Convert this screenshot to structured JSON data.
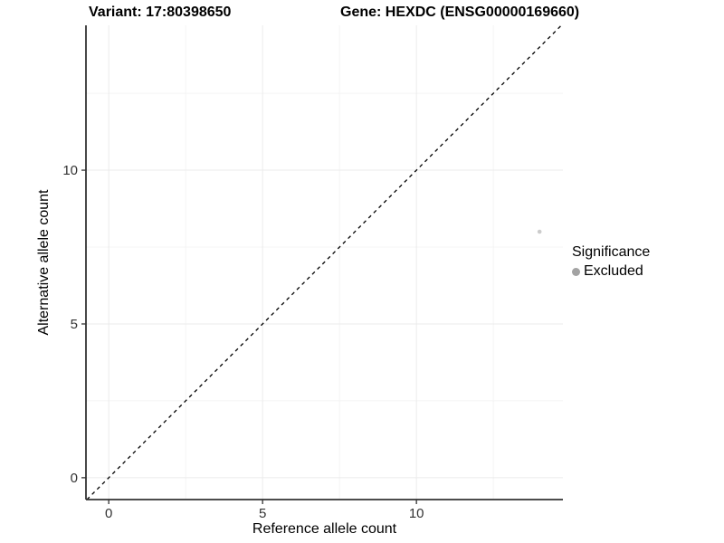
{
  "chart_data": {
    "type": "scatter",
    "title_left": "Variant: 17:80398650",
    "title_right": "Gene: HEXDC (ENSG00000169660)",
    "xlabel": "Reference allele count",
    "ylabel": "Alternative allele count",
    "xlim": [
      -0.74,
      14.76
    ],
    "ylim": [
      -0.71,
      14.71
    ],
    "x_major_ticks": [
      0,
      5,
      10
    ],
    "y_major_ticks": [
      0,
      5,
      10
    ],
    "x_minor_gridlines": [
      2.5,
      7.5,
      12.5
    ],
    "y_minor_gridlines": [
      2.5,
      7.5,
      12.5
    ],
    "grid": true,
    "identity_line": {
      "equation": "y = x",
      "style": "dashed",
      "color": "#000000",
      "width": 1.3
    },
    "points": [
      {
        "x": 14,
        "y": 8,
        "series": "Excluded",
        "color": "#cccccc",
        "radius_px": 2.3
      }
    ],
    "legend": {
      "title": "Significance",
      "position": "right",
      "entries": [
        {
          "label": "Excluded",
          "color": "#a3a3a3",
          "marker": "circle"
        }
      ]
    },
    "colors": {
      "axis_line": "#333333",
      "tick_mark": "#333333",
      "tick_label": "#333333",
      "grid_major": "#ebebeb",
      "grid_minor": "#f4f4f4",
      "background": "#ffffff"
    }
  }
}
